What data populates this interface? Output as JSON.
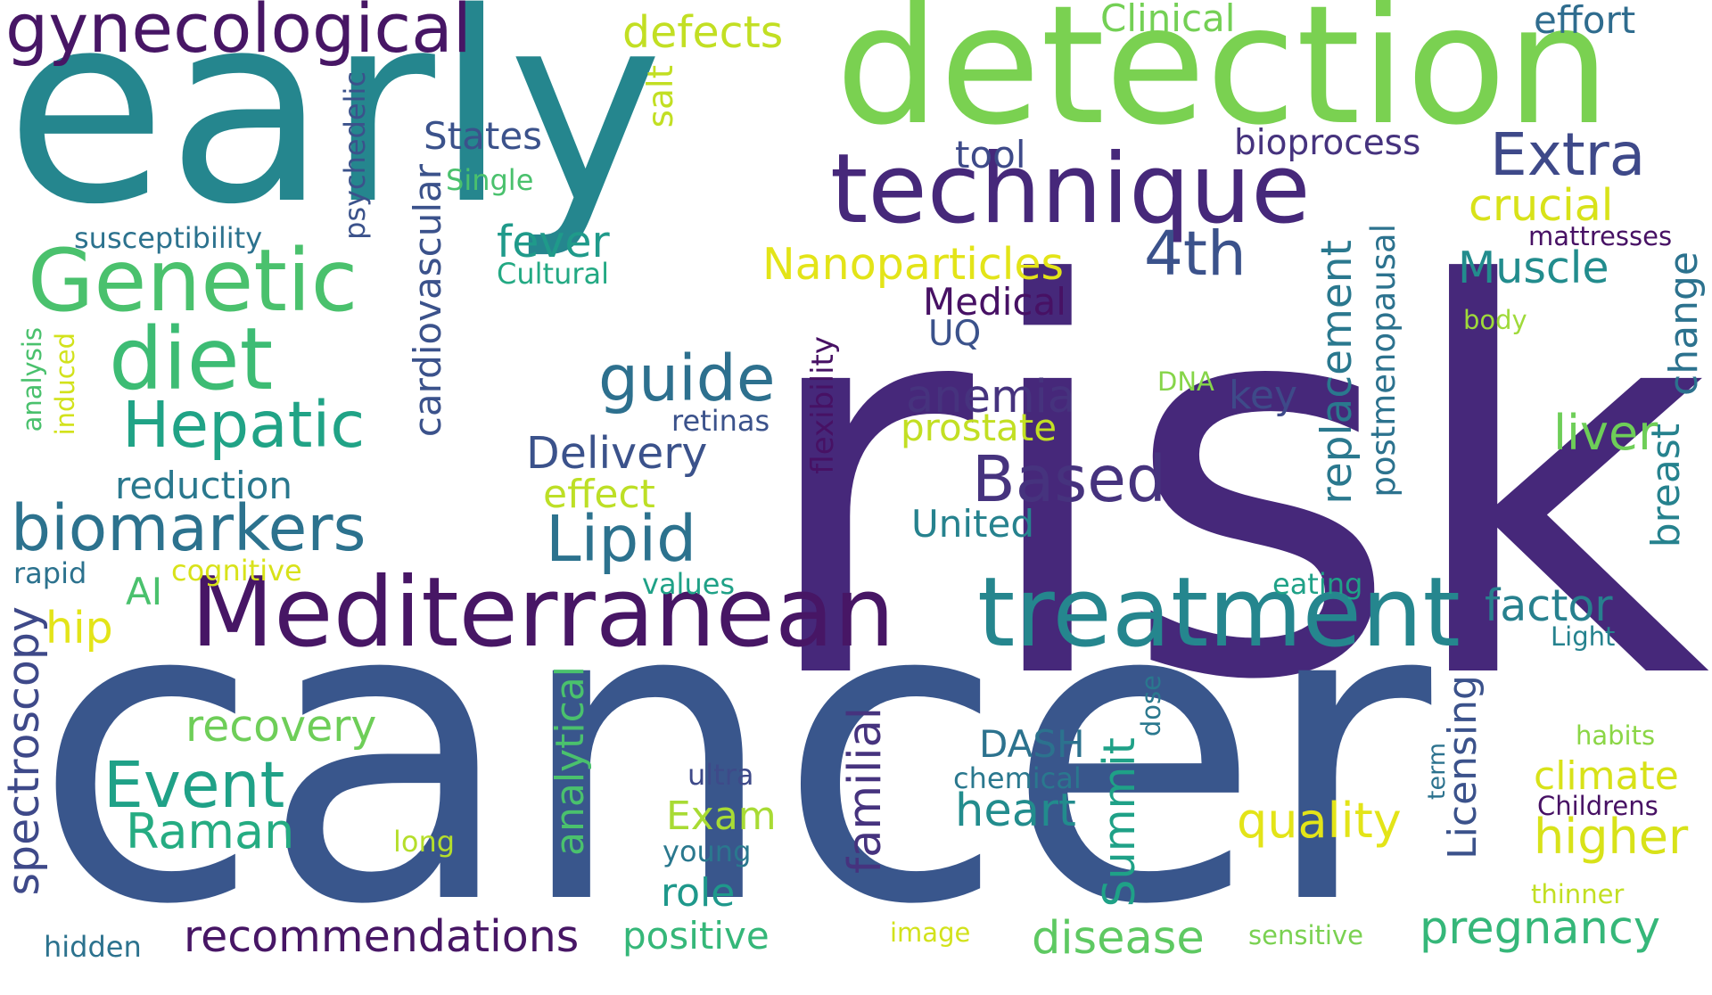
{
  "words": [
    {
      "text": "risk",
      "color": "#46287a"
    },
    {
      "text": "cancer",
      "color": "#39568c"
    },
    {
      "text": "early",
      "color": "#25868e"
    },
    {
      "text": "detection",
      "color": "#7ad151"
    },
    {
      "text": "technique",
      "color": "#46287a"
    },
    {
      "text": "Mediterranean",
      "color": "#471665"
    },
    {
      "text": "treatment",
      "color": "#25868e"
    },
    {
      "text": "gynecological",
      "color": "#471665"
    },
    {
      "text": "Genetic",
      "color": "#4ac16d"
    },
    {
      "text": "diet",
      "color": "#3dbc74"
    },
    {
      "text": "Hepatic",
      "color": "#20a386"
    },
    {
      "text": "biomarkers",
      "color": "#2c728e"
    },
    {
      "text": "Event",
      "color": "#1fa187"
    },
    {
      "text": "Raman",
      "color": "#25ac82"
    },
    {
      "text": "Lipid",
      "color": "#2c728e"
    },
    {
      "text": "Based",
      "color": "#46337e"
    },
    {
      "text": "guide",
      "color": "#2d708e"
    },
    {
      "text": "Delivery",
      "color": "#3b528b"
    },
    {
      "text": "4th",
      "color": "#3b528b"
    },
    {
      "text": "Extra",
      "color": "#3e4989"
    },
    {
      "text": "Nanoparticles",
      "color": "#e3e418"
    },
    {
      "text": "anemia",
      "color": "#46337e"
    },
    {
      "text": "recovery",
      "color": "#6ece58"
    },
    {
      "text": "recommendations",
      "color": "#471665"
    },
    {
      "text": "disease",
      "color": "#5ec962"
    },
    {
      "text": "pregnancy",
      "color": "#35b779"
    },
    {
      "text": "heart",
      "color": "#228c8d"
    },
    {
      "text": "quality",
      "color": "#e3e418"
    },
    {
      "text": "higher",
      "color": "#d8e219"
    },
    {
      "text": "climate",
      "color": "#d8e219"
    },
    {
      "text": "Muscle",
      "color": "#228c8d"
    },
    {
      "text": "liver",
      "color": "#6ece58"
    },
    {
      "text": "factor",
      "color": "#27808e"
    },
    {
      "text": "crucial",
      "color": "#d8e219"
    },
    {
      "text": "fever",
      "color": "#1f9a8a"
    },
    {
      "text": "reduction",
      "color": "#2a788e"
    },
    {
      "text": "States",
      "color": "#3b528b"
    },
    {
      "text": "bioprocess",
      "color": "#46337e"
    },
    {
      "text": "tool",
      "color": "#3e4a89"
    },
    {
      "text": "defects",
      "color": "#c2df23"
    },
    {
      "text": "Clinical",
      "color": "#74d055"
    },
    {
      "text": "effort",
      "color": "#2f6c8e"
    },
    {
      "text": "Medical",
      "color": "#471164"
    },
    {
      "text": "UQ",
      "color": "#3b528b"
    },
    {
      "text": "prostate",
      "color": "#c2df23"
    },
    {
      "text": "key",
      "color": "#3e4a89"
    },
    {
      "text": "United",
      "color": "#26828e"
    },
    {
      "text": "effect",
      "color": "#bddf26"
    },
    {
      "text": "DASH",
      "color": "#2c728e"
    },
    {
      "text": "Exam",
      "color": "#a8db34"
    },
    {
      "text": "role",
      "color": "#1f988b"
    },
    {
      "text": "positive",
      "color": "#35b779"
    },
    {
      "text": "hip",
      "color": "#e3e418"
    },
    {
      "text": "AI",
      "color": "#4ac16d"
    },
    {
      "text": "cognitive",
      "color": "#d8e219"
    },
    {
      "text": "rapid",
      "color": "#2c728e"
    },
    {
      "text": "susceptibility",
      "color": "#2c728e"
    },
    {
      "text": "Cultural",
      "color": "#23a983"
    },
    {
      "text": "Single",
      "color": "#4ac16d"
    },
    {
      "text": "retinas",
      "color": "#3b528b"
    },
    {
      "text": "DNA",
      "color": "#86d549"
    },
    {
      "text": "body",
      "color": "#9fda3a"
    },
    {
      "text": "mattresses",
      "color": "#471164"
    },
    {
      "text": "Light",
      "color": "#26828e"
    },
    {
      "text": "eating",
      "color": "#1fa187"
    },
    {
      "text": "values",
      "color": "#1fa187"
    },
    {
      "text": "habits",
      "color": "#8bd646"
    },
    {
      "text": "Childrens",
      "color": "#471164"
    },
    {
      "text": "chemical",
      "color": "#2a788e"
    },
    {
      "text": "ultra",
      "color": "#3e4a89"
    },
    {
      "text": "young",
      "color": "#2a788e"
    },
    {
      "text": "long",
      "color": "#b5de2b"
    },
    {
      "text": "thinner",
      "color": "#c2df23"
    },
    {
      "text": "image",
      "color": "#d2e21b"
    },
    {
      "text": "sensitive",
      "color": "#7ad151"
    },
    {
      "text": "hidden",
      "color": "#2c728e"
    },
    {
      "text": "cardiovascular",
      "color": "#3b528b"
    },
    {
      "text": "psychedelic",
      "color": "#3b528b"
    },
    {
      "text": "salt",
      "color": "#c2df23"
    },
    {
      "text": "flexibility",
      "color": "#471164"
    },
    {
      "text": "replacement",
      "color": "#2a788e"
    },
    {
      "text": "postmenopausal",
      "color": "#2c728e"
    },
    {
      "text": "change",
      "color": "#2c728e"
    },
    {
      "text": "breast",
      "color": "#26828e"
    },
    {
      "text": "spectroscopy",
      "color": "#3e4989"
    },
    {
      "text": "analytical",
      "color": "#4ac16d"
    },
    {
      "text": "familial",
      "color": "#46337e"
    },
    {
      "text": "Summit",
      "color": "#1fa187"
    },
    {
      "text": "Licensing",
      "color": "#3b528b"
    },
    {
      "text": "term",
      "color": "#2c728e"
    },
    {
      "text": "dose",
      "color": "#2a788e"
    },
    {
      "text": "analysis",
      "color": "#4ac16d"
    },
    {
      "text": "induced",
      "color": "#d2e21b"
    }
  ]
}
